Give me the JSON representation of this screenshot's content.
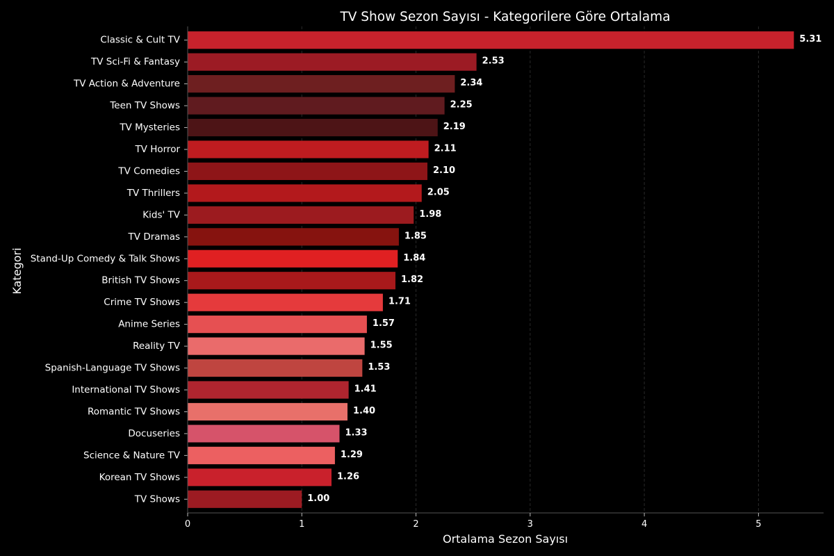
{
  "chart_data": {
    "type": "bar",
    "orientation": "horizontal",
    "title": "TV Show Sezon Sayısı - Kategorilere Göre Ortalama",
    "xlabel": "Ortalama Sezon Sayısı",
    "ylabel": "Kategori",
    "xlim": [
      0,
      5.57
    ],
    "xticks": [
      0,
      1,
      2,
      3,
      4,
      5
    ],
    "grid": "vertical dashed",
    "background": "#000000",
    "categories": [
      "Classic & Cult TV",
      "TV Sci-Fi & Fantasy",
      "TV Action & Adventure",
      "Teen TV Shows",
      "TV Mysteries",
      "TV Horror",
      "TV Comedies",
      "TV Thrillers",
      "Kids' TV",
      "TV Dramas",
      "Stand-Up Comedy & Talk Shows",
      "British TV Shows",
      "Crime TV Shows",
      "Anime Series",
      "Reality TV",
      "Spanish-Language TV Shows",
      "International TV Shows",
      "Romantic TV Shows",
      "Docuseries",
      "Science & Nature TV",
      "Korean TV Shows",
      "TV Shows"
    ],
    "values": [
      5.31,
      2.53,
      2.34,
      2.25,
      2.19,
      2.11,
      2.1,
      2.05,
      1.98,
      1.85,
      1.84,
      1.82,
      1.71,
      1.57,
      1.55,
      1.53,
      1.41,
      1.4,
      1.33,
      1.29,
      1.26,
      1.0
    ],
    "value_labels": [
      "5.31",
      "2.53",
      "2.34",
      "2.25",
      "2.19",
      "2.11",
      "2.10",
      "2.05",
      "1.98",
      "1.85",
      "1.84",
      "1.82",
      "1.71",
      "1.57",
      "1.55",
      "1.53",
      "1.41",
      "1.40",
      "1.33",
      "1.29",
      "1.26",
      "1.00"
    ],
    "colors": [
      "#c8222c",
      "#9c1b24",
      "#6e1f20",
      "#601b1f",
      "#4d1416",
      "#bf1c20",
      "#8e1518",
      "#b3191c",
      "#9c1b1f",
      "#86130f",
      "#e02022",
      "#a8191b",
      "#e53a3c",
      "#e65052",
      "#ea6b6b",
      "#bf4540",
      "#b0252f",
      "#e8706a",
      "#d6536a",
      "#ec6061",
      "#c9212c",
      "#9c1b22"
    ]
  }
}
